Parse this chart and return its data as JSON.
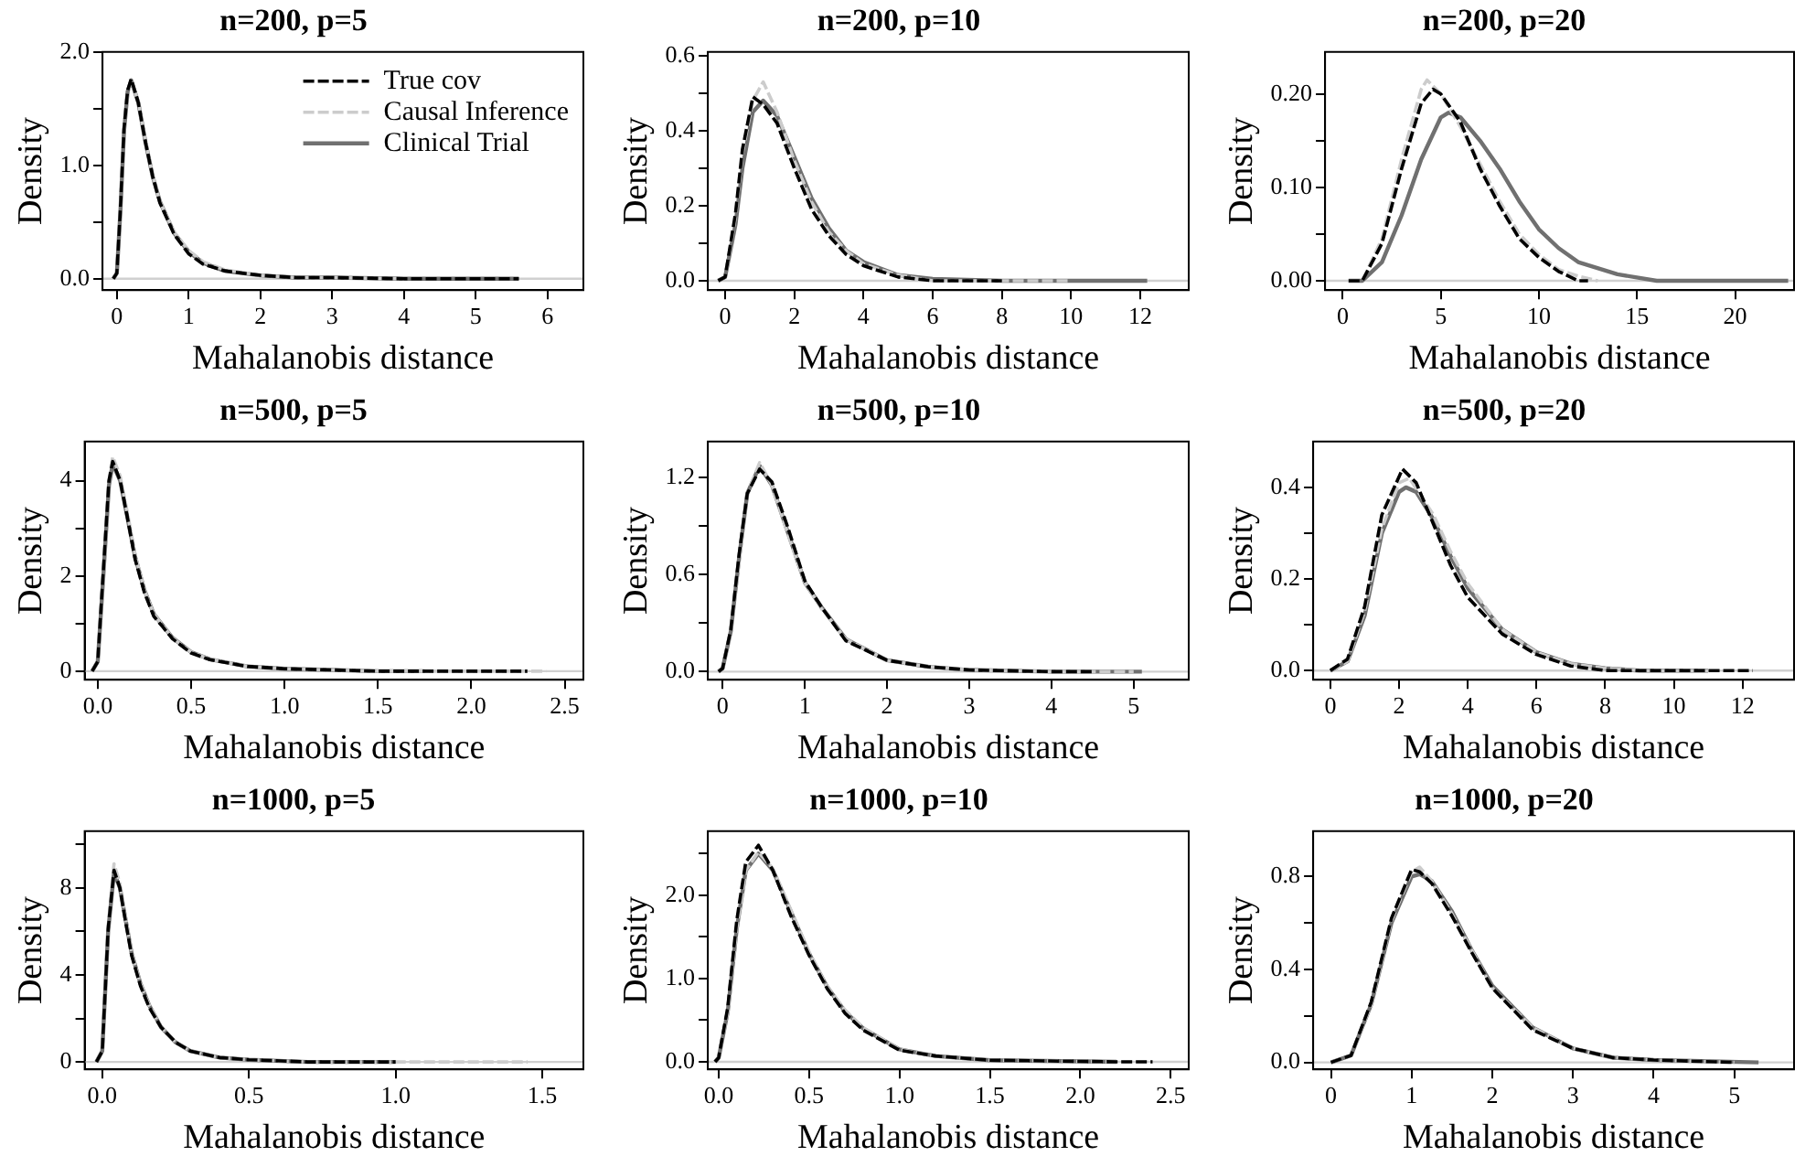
{
  "chart_data": [
    {
      "type": "line",
      "title": "n=200, p=5",
      "xlabel": "Mahalanobis distance",
      "ylabel": "Density",
      "xlim": [
        -0.2,
        6.5
      ],
      "xticks": [
        0,
        1,
        2,
        3,
        4,
        5,
        6
      ],
      "ylim": [
        -0.1,
        2.0
      ],
      "yticks": [
        {
          "value": 0,
          "label": "0.0"
        },
        {
          "value": 0.5,
          "label": null
        },
        {
          "value": 1,
          "label": "1.0"
        },
        {
          "value": 1.5,
          "label": null
        },
        {
          "value": 2,
          "label": "2.0"
        }
      ],
      "legend": "top right",
      "ref_lines": [
        {
          "axis": "y",
          "value": 0,
          "color": "#d0d0d0"
        }
      ],
      "series": [
        {
          "name": "True cov",
          "color": "#000000",
          "line_style": "dashed",
          "x": [
            -0.05,
            0,
            0.05,
            0.1,
            0.15,
            0.2,
            0.3,
            0.4,
            0.5,
            0.6,
            0.8,
            1.0,
            1.2,
            1.5,
            2,
            2.5,
            3,
            4,
            5,
            5.6
          ],
          "values": [
            0,
            0.05,
            0.62,
            1.32,
            1.66,
            1.76,
            1.55,
            1.2,
            0.9,
            0.67,
            0.39,
            0.22,
            0.13,
            0.07,
            0.03,
            0.01,
            0.01,
            0,
            0,
            0
          ]
        },
        {
          "name": "Causal Inference",
          "color": "#cccccc",
          "line_style": "dashed",
          "x": [
            -0.05,
            0,
            0.05,
            0.1,
            0.15,
            0.2,
            0.3,
            0.4,
            0.5,
            0.6,
            0.8,
            1.0,
            1.2,
            1.5,
            2,
            2.5,
            3,
            4
          ],
          "values": [
            0,
            0.05,
            0.6,
            1.3,
            1.64,
            1.74,
            1.56,
            1.21,
            0.91,
            0.68,
            0.41,
            0.25,
            0.15,
            0.08,
            0.03,
            0.01,
            0.01,
            0
          ]
        },
        {
          "name": "Clinical Trial",
          "color": "#707070",
          "line_style": "solid",
          "x": [
            -0.05,
            0,
            0.05,
            0.1,
            0.15,
            0.2,
            0.3,
            0.4,
            0.5,
            0.6,
            0.8,
            1.0,
            1.2,
            1.5,
            2,
            2.5,
            3,
            4,
            5,
            5.6
          ],
          "values": [
            0,
            0.05,
            0.6,
            1.3,
            1.65,
            1.75,
            1.55,
            1.2,
            0.9,
            0.68,
            0.4,
            0.24,
            0.14,
            0.07,
            0.03,
            0.01,
            0.01,
            0,
            0,
            0
          ]
        }
      ]
    },
    {
      "type": "line",
      "title": "n=200, p=10",
      "xlabel": "Mahalanobis distance",
      "ylabel": "Density",
      "xlim": [
        -0.5,
        13.4
      ],
      "xticks": [
        0,
        2,
        4,
        6,
        8,
        10,
        12
      ],
      "ylim": [
        -0.025,
        0.61
      ],
      "yticks": [
        {
          "value": 0,
          "label": "0.0"
        },
        {
          "value": 0.1,
          "label": null
        },
        {
          "value": 0.2,
          "label": "0.2"
        },
        {
          "value": 0.3,
          "label": null
        },
        {
          "value": 0.4,
          "label": "0.4"
        },
        {
          "value": 0.5,
          "label": null
        },
        {
          "value": 0.6,
          "label": "0.6"
        }
      ],
      "ref_lines": [
        {
          "axis": "y",
          "value": 0,
          "color": "#d0d0d0"
        }
      ],
      "series": [
        {
          "color": "#000000",
          "line_style": "dashed",
          "x": [
            -0.2,
            0,
            0.3,
            0.5,
            0.8,
            1.1,
            1.5,
            2,
            2.5,
            3,
            3.5,
            4,
            5,
            6,
            8
          ],
          "values": [
            0,
            0.01,
            0.18,
            0.35,
            0.49,
            0.47,
            0.42,
            0.3,
            0.19,
            0.12,
            0.07,
            0.04,
            0.01,
            0,
            0
          ]
        },
        {
          "color": "#cccccc",
          "line_style": "dashed",
          "x": [
            -0.2,
            0,
            0.3,
            0.5,
            0.8,
            1.1,
            1.5,
            2,
            2.5,
            3,
            3.5,
            4,
            5,
            6,
            8,
            10
          ],
          "values": [
            0,
            0.01,
            0.17,
            0.34,
            0.48,
            0.53,
            0.45,
            0.32,
            0.21,
            0.13,
            0.08,
            0.045,
            0.015,
            0,
            0,
            0
          ]
        },
        {
          "color": "#707070",
          "line_style": "solid",
          "x": [
            -0.2,
            0,
            0.3,
            0.5,
            0.8,
            1.1,
            1.5,
            2,
            2.5,
            3,
            3.5,
            4,
            5,
            6,
            8,
            10,
            12.2
          ],
          "values": [
            0,
            0.01,
            0.15,
            0.3,
            0.45,
            0.48,
            0.44,
            0.33,
            0.22,
            0.14,
            0.08,
            0.05,
            0.015,
            0.005,
            0,
            0,
            0
          ]
        }
      ]
    },
    {
      "type": "line",
      "title": "n=200, p=20",
      "xlabel": "Mahalanobis distance",
      "ylabel": "Density",
      "xlim": [
        -0.9,
        23
      ],
      "xticks": [
        0,
        5,
        10,
        15,
        20
      ],
      "ylim": [
        -0.01,
        0.245
      ],
      "yticks": [
        {
          "value": 0,
          "label": "0.00"
        },
        {
          "value": 0.05,
          "label": null
        },
        {
          "value": 0.1,
          "label": "0.10"
        },
        {
          "value": 0.15,
          "label": null
        },
        {
          "value": 0.2,
          "label": "0.20"
        }
      ],
      "ref_lines": [
        {
          "axis": "y",
          "value": 0,
          "color": "#d0d0d0"
        }
      ],
      "series": [
        {
          "color": "#000000",
          "line_style": "dashed",
          "x": [
            0.3,
            1,
            2,
            3,
            4,
            4.6,
            5,
            6,
            7,
            8,
            9,
            10,
            11,
            12,
            12.5
          ],
          "values": [
            0,
            0,
            0.04,
            0.12,
            0.19,
            0.205,
            0.2,
            0.17,
            0.12,
            0.08,
            0.045,
            0.025,
            0.01,
            0,
            0
          ]
        },
        {
          "color": "#cccccc",
          "line_style": "dashed",
          "x": [
            0.3,
            1,
            2,
            3,
            4,
            4.3,
            5,
            6,
            7,
            8,
            9,
            10,
            11,
            12,
            13
          ],
          "values": [
            0,
            0,
            0.045,
            0.13,
            0.205,
            0.215,
            0.2,
            0.165,
            0.125,
            0.085,
            0.05,
            0.028,
            0.012,
            0.005,
            0
          ]
        },
        {
          "color": "#707070",
          "line_style": "solid",
          "x": [
            0.3,
            1,
            2,
            3,
            4,
            5,
            5.4,
            6,
            7,
            8,
            9,
            10,
            11,
            12,
            14,
            16,
            18,
            20,
            22.7
          ],
          "values": [
            0,
            0,
            0.02,
            0.07,
            0.13,
            0.175,
            0.18,
            0.175,
            0.15,
            0.12,
            0.085,
            0.055,
            0.035,
            0.02,
            0.007,
            0,
            0,
            0,
            0
          ]
        }
      ]
    },
    {
      "type": "line",
      "title": "n=500, p=5",
      "xlabel": "Mahalanobis distance",
      "ylabel": "Density",
      "xlim": [
        -0.07,
        2.6
      ],
      "xticks": [
        {
          "value": 0,
          "label": "0.0"
        },
        {
          "value": 0.5,
          "label": "0.5"
        },
        {
          "value": 1,
          "label": "1.0"
        },
        {
          "value": 1.5,
          "label": "1.5"
        },
        {
          "value": 2,
          "label": "2.0"
        },
        {
          "value": 2.5,
          "label": "2.5"
        }
      ],
      "ylim": [
        -0.18,
        4.82
      ],
      "yticks": [
        0,
        {
          "value": 1,
          "label": null
        },
        2,
        {
          "value": 3,
          "label": null
        },
        4
      ],
      "ref_lines": [
        {
          "axis": "y",
          "value": 0,
          "color": "#d0d0d0"
        }
      ],
      "series": [
        {
          "color": "#000000",
          "line_style": "dashed",
          "x": [
            -0.03,
            0,
            0.03,
            0.06,
            0.08,
            0.12,
            0.16,
            0.2,
            0.25,
            0.3,
            0.35,
            0.4,
            0.5,
            0.6,
            0.8,
            1.0,
            1.2,
            1.5,
            2.0,
            2.3
          ],
          "values": [
            0,
            0.2,
            2.1,
            4.0,
            4.4,
            4.0,
            3.2,
            2.35,
            1.65,
            1.15,
            0.92,
            0.68,
            0.38,
            0.24,
            0.1,
            0.05,
            0.03,
            0,
            0,
            0
          ]
        },
        {
          "color": "#cccccc",
          "line_style": "dashed",
          "x": [
            -0.03,
            0,
            0.03,
            0.06,
            0.08,
            0.12,
            0.16,
            0.2,
            0.25,
            0.3,
            0.35,
            0.4,
            0.5,
            0.6,
            0.8,
            1.0,
            1.2,
            1.5,
            2.0,
            2.4
          ],
          "values": [
            0,
            0.2,
            2.0,
            4.0,
            4.5,
            4.1,
            3.3,
            2.45,
            1.7,
            1.2,
            0.95,
            0.7,
            0.4,
            0.25,
            0.1,
            0.05,
            0.03,
            0,
            0,
            0
          ]
        },
        {
          "color": "#707070",
          "line_style": "solid",
          "x": [
            -0.03,
            0,
            0.03,
            0.06,
            0.08,
            0.12,
            0.16,
            0.2,
            0.25,
            0.3,
            0.35,
            0.4,
            0.5,
            0.6,
            0.8,
            1.0,
            1.2,
            1.5,
            1.75
          ],
          "values": [
            0,
            0.2,
            2.0,
            3.9,
            4.35,
            4.0,
            3.2,
            2.4,
            1.7,
            1.2,
            0.95,
            0.7,
            0.4,
            0.25,
            0.1,
            0.05,
            0.03,
            0,
            0
          ]
        }
      ]
    },
    {
      "type": "line",
      "title": "n=500, p=10",
      "xlabel": "Mahalanobis distance",
      "ylabel": "Density",
      "xlim": [
        -0.18,
        5.67
      ],
      "xticks": [
        0,
        1,
        2,
        3,
        4,
        5
      ],
      "ylim": [
        -0.05,
        1.42
      ],
      "yticks": [
        {
          "value": 0,
          "label": "0.0"
        },
        {
          "value": 0.3,
          "label": null
        },
        {
          "value": 0.6,
          "label": "0.6"
        },
        {
          "value": 0.9,
          "label": null
        },
        {
          "value": 1.2,
          "label": "1.2"
        }
      ],
      "ref_lines": [
        {
          "axis": "y",
          "value": 0,
          "color": "#d0d0d0"
        }
      ],
      "series": [
        {
          "color": "#000000",
          "line_style": "dashed",
          "x": [
            -0.05,
            0,
            0.1,
            0.2,
            0.3,
            0.45,
            0.6,
            0.8,
            1.0,
            1.2,
            1.5,
            2,
            2.5,
            3,
            4,
            4.5
          ],
          "values": [
            0,
            0.02,
            0.26,
            0.72,
            1.1,
            1.25,
            1.17,
            0.88,
            0.56,
            0.4,
            0.19,
            0.07,
            0.03,
            0.01,
            0,
            0
          ]
        },
        {
          "color": "#cccccc",
          "line_style": "dashed",
          "x": [
            -0.05,
            0,
            0.1,
            0.2,
            0.3,
            0.45,
            0.6,
            0.8,
            1.0,
            1.2,
            1.5,
            2,
            2.5,
            3,
            4,
            5
          ],
          "values": [
            0,
            0.02,
            0.25,
            0.68,
            1.1,
            1.29,
            1.15,
            0.84,
            0.55,
            0.39,
            0.2,
            0.07,
            0.03,
            0.01,
            0,
            0
          ]
        },
        {
          "color": "#707070",
          "line_style": "solid",
          "x": [
            -0.05,
            0,
            0.1,
            0.2,
            0.3,
            0.45,
            0.6,
            0.8,
            1.0,
            1.2,
            1.5,
            2,
            2.5,
            3,
            4,
            5.1
          ],
          "values": [
            0,
            0.02,
            0.25,
            0.7,
            1.1,
            1.27,
            1.15,
            0.85,
            0.55,
            0.4,
            0.2,
            0.07,
            0.03,
            0.01,
            0,
            0
          ]
        }
      ]
    },
    {
      "type": "line",
      "title": "n=500, p=20",
      "xlabel": "Mahalanobis distance",
      "ylabel": "Density",
      "xlim": [
        -0.5,
        13.5
      ],
      "xticks": [
        0,
        2,
        4,
        6,
        8,
        10,
        12
      ],
      "ylim": [
        -0.02,
        0.5
      ],
      "yticks": [
        {
          "value": 0,
          "label": "0.0"
        },
        {
          "value": 0.1,
          "label": null
        },
        {
          "value": 0.2,
          "label": "0.2"
        },
        {
          "value": 0.3,
          "label": null
        },
        {
          "value": 0.4,
          "label": "0.4"
        }
      ],
      "ref_lines": [
        {
          "axis": "y",
          "value": 0,
          "color": "#d0d0d0"
        }
      ],
      "series": [
        {
          "color": "#000000",
          "line_style": "dashed",
          "x": [
            0,
            0.5,
            1,
            1.5,
            2.1,
            2.5,
            3,
            3.5,
            4,
            5,
            6,
            7,
            8,
            9,
            11,
            12.3
          ],
          "values": [
            0,
            0.025,
            0.14,
            0.34,
            0.44,
            0.41,
            0.32,
            0.23,
            0.16,
            0.08,
            0.035,
            0.01,
            0,
            0,
            0,
            0
          ]
        },
        {
          "color": "#cccccc",
          "line_style": "dashed",
          "x": [
            0,
            0.5,
            1,
            1.5,
            2,
            2.3,
            3,
            3.5,
            4,
            5,
            6,
            7,
            8,
            9,
            11
          ],
          "values": [
            0,
            0.02,
            0.13,
            0.31,
            0.41,
            0.42,
            0.34,
            0.26,
            0.19,
            0.09,
            0.04,
            0.015,
            0.005,
            0,
            0
          ]
        },
        {
          "color": "#707070",
          "line_style": "solid",
          "x": [
            0,
            0.5,
            1,
            1.5,
            2,
            2.2,
            2.5,
            3,
            3.5,
            4,
            5,
            6,
            7,
            8,
            9,
            11
          ],
          "values": [
            0,
            0.02,
            0.12,
            0.3,
            0.39,
            0.4,
            0.39,
            0.33,
            0.25,
            0.18,
            0.09,
            0.04,
            0.015,
            0.005,
            0,
            0
          ]
        }
      ]
    },
    {
      "type": "line",
      "title": "n=1000, p=5",
      "xlabel": "Mahalanobis distance",
      "ylabel": "Density",
      "xlim": [
        -0.06,
        1.64
      ],
      "xticks": [
        {
          "value": 0,
          "label": "0.0"
        },
        {
          "value": 0.5,
          "label": "0.5"
        },
        {
          "value": 1,
          "label": "1.0"
        },
        {
          "value": 1.5,
          "label": "1.5"
        }
      ],
      "ylim": [
        -0.34,
        10.6
      ],
      "yticks": [
        0,
        {
          "value": 2,
          "label": null
        },
        4,
        {
          "value": 6,
          "label": null
        },
        8,
        {
          "value": 10,
          "label": null
        }
      ],
      "ref_lines": [
        {
          "axis": "y",
          "value": 0,
          "color": "#d0d0d0"
        }
      ],
      "series": [
        {
          "color": "#000000",
          "line_style": "dashed",
          "x": [
            -0.02,
            0,
            0.02,
            0.04,
            0.06,
            0.08,
            0.1,
            0.13,
            0.16,
            0.2,
            0.25,
            0.3,
            0.4,
            0.5,
            0.7,
            1.0
          ],
          "values": [
            0,
            0.5,
            6.1,
            8.8,
            8.0,
            6.4,
            4.9,
            3.5,
            2.5,
            1.6,
            0.9,
            0.5,
            0.2,
            0.1,
            0,
            0
          ]
        },
        {
          "color": "#cccccc",
          "line_style": "dashed",
          "x": [
            -0.02,
            0,
            0.02,
            0.04,
            0.06,
            0.08,
            0.1,
            0.13,
            0.16,
            0.2,
            0.25,
            0.3,
            0.4,
            0.5,
            0.7,
            1.0,
            1.45
          ],
          "values": [
            0,
            0.5,
            6.2,
            9.1,
            8.2,
            6.6,
            5.0,
            3.6,
            2.6,
            1.6,
            0.9,
            0.5,
            0.2,
            0.1,
            0,
            0,
            0
          ]
        },
        {
          "color": "#707070",
          "line_style": "solid",
          "x": [
            -0.02,
            0,
            0.02,
            0.04,
            0.06,
            0.08,
            0.1,
            0.13,
            0.16,
            0.2,
            0.25,
            0.3,
            0.4,
            0.5,
            0.7,
            1.0
          ],
          "values": [
            0,
            0.5,
            6,
            8.7,
            8,
            6.5,
            5,
            3.6,
            2.6,
            1.6,
            0.9,
            0.5,
            0.2,
            0.1,
            0,
            0
          ]
        }
      ]
    },
    {
      "type": "line",
      "title": "n=1000, p=10",
      "xlabel": "Mahalanobis distance",
      "ylabel": "Density",
      "xlim": [
        -0.06,
        2.6
      ],
      "xticks": [
        {
          "value": 0,
          "label": "0.0"
        },
        {
          "value": 0.5,
          "label": "0.5"
        },
        {
          "value": 1,
          "label": "1.0"
        },
        {
          "value": 1.5,
          "label": "1.5"
        },
        {
          "value": 2,
          "label": "2.0"
        },
        {
          "value": 2.5,
          "label": "2.5"
        }
      ],
      "ylim": [
        -0.09,
        2.77
      ],
      "yticks": [
        {
          "value": 0,
          "label": "0.0"
        },
        {
          "value": 0.5,
          "label": null
        },
        {
          "value": 1,
          "label": "1.0"
        },
        {
          "value": 1.5,
          "label": null
        },
        {
          "value": 2,
          "label": "2.0"
        },
        {
          "value": 2.5,
          "label": null
        }
      ],
      "ref_lines": [
        {
          "axis": "y",
          "value": 0,
          "color": "#d0d0d0"
        }
      ],
      "series": [
        {
          "color": "#000000",
          "line_style": "dashed",
          "x": [
            -0.02,
            0,
            0.05,
            0.1,
            0.15,
            0.22,
            0.3,
            0.4,
            0.5,
            0.6,
            0.7,
            0.8,
            1.0,
            1.2,
            1.5,
            2.2,
            2.4
          ],
          "values": [
            0,
            0.05,
            0.65,
            1.7,
            2.4,
            2.6,
            2.3,
            1.75,
            1.28,
            0.88,
            0.58,
            0.38,
            0.14,
            0.07,
            0.02,
            0,
            0
          ]
        },
        {
          "color": "#cccccc",
          "line_style": "dashed",
          "x": [
            -0.02,
            0,
            0.05,
            0.1,
            0.15,
            0.22,
            0.3,
            0.4,
            0.5,
            0.6,
            0.7,
            0.8,
            1.0,
            1.2,
            1.5,
            2.2
          ],
          "values": [
            0,
            0.05,
            0.6,
            1.6,
            2.3,
            2.52,
            2.32,
            1.82,
            1.32,
            0.9,
            0.62,
            0.41,
            0.15,
            0.07,
            0.02,
            0
          ]
        },
        {
          "color": "#707070",
          "line_style": "solid",
          "x": [
            -0.02,
            0,
            0.05,
            0.1,
            0.15,
            0.22,
            0.3,
            0.4,
            0.5,
            0.6,
            0.7,
            0.8,
            1.0,
            1.2,
            1.5,
            2.2
          ],
          "values": [
            0,
            0.05,
            0.6,
            1.6,
            2.3,
            2.5,
            2.3,
            1.8,
            1.3,
            0.9,
            0.6,
            0.4,
            0.15,
            0.07,
            0.02,
            0
          ]
        }
      ]
    },
    {
      "type": "line",
      "title": "n=1000, p=20",
      "xlabel": "Mahalanobis distance",
      "ylabel": "Density",
      "xlim": [
        -0.22,
        5.74
      ],
      "xticks": [
        0,
        1,
        2,
        3,
        4,
        5
      ],
      "ylim": [
        -0.03,
        0.995
      ],
      "yticks": [
        {
          "value": 0,
          "label": "0.0"
        },
        {
          "value": 0.2,
          "label": null
        },
        {
          "value": 0.4,
          "label": "0.4"
        },
        {
          "value": 0.6,
          "label": null
        },
        {
          "value": 0.8,
          "label": "0.8"
        }
      ],
      "ref_lines": [
        {
          "axis": "y",
          "value": 0,
          "color": "#d0d0d0"
        }
      ],
      "series": [
        {
          "color": "#000000",
          "line_style": "dashed",
          "x": [
            0,
            0.25,
            0.5,
            0.75,
            1,
            1.1,
            1.25,
            1.5,
            1.75,
            2,
            2.5,
            3,
            3.5,
            4,
            5
          ],
          "values": [
            0,
            0.03,
            0.26,
            0.62,
            0.83,
            0.82,
            0.77,
            0.63,
            0.47,
            0.32,
            0.14,
            0.06,
            0.02,
            0.01,
            0
          ]
        },
        {
          "color": "#cccccc",
          "line_style": "dashed",
          "x": [
            0,
            0.25,
            0.5,
            0.75,
            1,
            1.1,
            1.25,
            1.5,
            1.75,
            2,
            2.5,
            3,
            3.5,
            4,
            5
          ],
          "values": [
            0,
            0.03,
            0.25,
            0.61,
            0.82,
            0.84,
            0.78,
            0.64,
            0.48,
            0.32,
            0.15,
            0.06,
            0.02,
            0.01,
            0
          ]
        },
        {
          "color": "#707070",
          "line_style": "solid",
          "x": [
            0,
            0.25,
            0.5,
            0.75,
            1,
            1.1,
            1.25,
            1.5,
            1.75,
            2,
            2.5,
            3,
            3.5,
            4,
            5.3
          ],
          "values": [
            0,
            0.03,
            0.25,
            0.6,
            0.8,
            0.81,
            0.78,
            0.65,
            0.48,
            0.33,
            0.15,
            0.06,
            0.02,
            0.01,
            0
          ]
        }
      ]
    }
  ]
}
